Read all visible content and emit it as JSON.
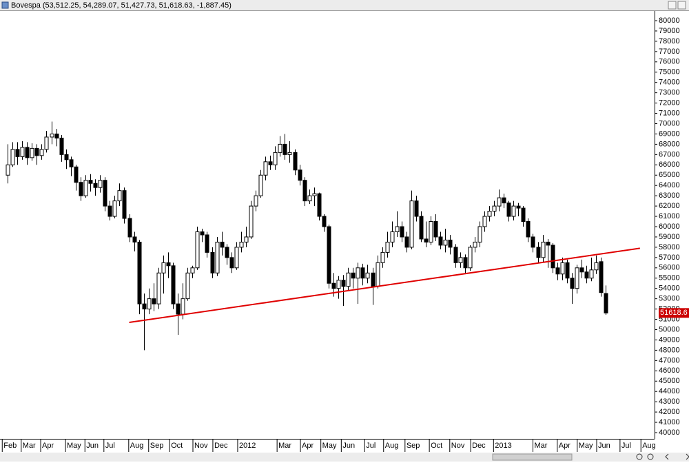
{
  "chart_data": {
    "type": "candlestick",
    "title": "Bovespa (53,512.25, 54,289.07, 51,427.73, 51,618.63, -1,887.45)",
    "last_label": "51618.6",
    "up_color": "#ffffff",
    "down_color": "#000000",
    "wick_color": "#000000",
    "xlim": [
      -1.56,
      133
    ],
    "ylim": [
      40000,
      80000
    ],
    "yticks": [
      40000,
      41000,
      42000,
      43000,
      44000,
      45000,
      46000,
      47000,
      48000,
      49000,
      50000,
      51000,
      52000,
      53000,
      54000,
      55000,
      56000,
      57000,
      58000,
      59000,
      60000,
      61000,
      62000,
      63000,
      64000,
      65000,
      66000,
      67000,
      68000,
      69000,
      70000,
      71000,
      72000,
      73000,
      74000,
      75000,
      76000,
      77000,
      78000,
      79000,
      80000
    ],
    "xticks": [
      {
        "value": -1.1,
        "label": "Feb"
      },
      {
        "value": 2.8,
        "label": "Mar"
      },
      {
        "value": 6.8,
        "label": "Apr"
      },
      {
        "value": 11.9,
        "label": "May"
      },
      {
        "value": 15.9,
        "label": "Jun"
      },
      {
        "value": 19.8,
        "label": "Jul"
      },
      {
        "value": 24.9,
        "label": "Aug"
      },
      {
        "value": 29,
        "label": "Sep"
      },
      {
        "value": 33.3,
        "label": "Oct"
      },
      {
        "value": 38.1,
        "label": "Nov"
      },
      {
        "value": 42.2,
        "label": "Dec"
      },
      {
        "value": 47.3,
        "label": "2012"
      },
      {
        "value": 55.4,
        "label": "Mar"
      },
      {
        "value": 60.2,
        "label": "Apr"
      },
      {
        "value": 64.4,
        "label": "May"
      },
      {
        "value": 68.6,
        "label": "Jun"
      },
      {
        "value": 73.4,
        "label": "Jul"
      },
      {
        "value": 77.3,
        "label": "Aug"
      },
      {
        "value": 81.7,
        "label": "Sep"
      },
      {
        "value": 86.7,
        "label": "Oct"
      },
      {
        "value": 90.9,
        "label": "Nov"
      },
      {
        "value": 95.2,
        "label": "Dec"
      },
      {
        "value": 99.9,
        "label": "2013"
      },
      {
        "value": 108,
        "label": "Mar"
      },
      {
        "value": 113,
        "label": "Apr"
      },
      {
        "value": 117.1,
        "label": "May"
      },
      {
        "value": 121.1,
        "label": "Jun"
      },
      {
        "value": 125.9,
        "label": "Jul"
      },
      {
        "value": 130.2,
        "label": "Aug"
      }
    ],
    "open": [
      65000,
      66000,
      67500,
      66800,
      67700,
      66700,
      67600,
      66900,
      67500,
      68700,
      69000,
      68600,
      67000,
      66500,
      65800,
      64300,
      63000,
      64500,
      64200,
      63800,
      64500,
      62000,
      61000,
      62500,
      63500,
      60800,
      59000,
      58500,
      52500,
      52000,
      53000,
      52500,
      55500,
      56500,
      56200,
      52500,
      51500,
      53000,
      55500,
      56000,
      59500,
      59200,
      57500,
      55500,
      58500,
      58000,
      57000,
      56000,
      58000,
      58500,
      59000,
      62000,
      63000,
      65000,
      66300,
      66000,
      67200,
      68000,
      67000,
      67200,
      65500,
      64500,
      62500,
      63000,
      63200,
      61000,
      60000,
      54500,
      54000,
      54800,
      54200,
      55500,
      55000,
      56000,
      55000,
      55500,
      54200,
      56500,
      57500,
      58500,
      59500,
      60000,
      59000,
      58000,
      62500,
      61000,
      58800,
      58500,
      60500,
      59000,
      58200,
      58700,
      58000,
      56500,
      57000,
      56000,
      58000,
      58500,
      60000,
      61000,
      61500,
      62000,
      62800,
      62300,
      61000,
      62000,
      61800,
      60500,
      59000,
      58000,
      57000,
      58500,
      58200,
      56000,
      55400,
      56500,
      55000,
      54000,
      56000,
      55600,
      55000,
      55800,
      56600,
      53512.25
    ],
    "high": [
      68000,
      68200,
      68200,
      68300,
      68200,
      68100,
      68000,
      68000,
      69300,
      70200,
      69500,
      68900,
      67500,
      66800,
      66000,
      64800,
      65000,
      65100,
      64600,
      65000,
      64800,
      62500,
      63000,
      64200,
      63800,
      61200,
      59500,
      58700,
      53500,
      54000,
      54500,
      56000,
      57200,
      57500,
      56500,
      53500,
      54500,
      56000,
      56200,
      60000,
      59800,
      59500,
      58000,
      59000,
      59500,
      58300,
      57500,
      58500,
      59500,
      60000,
      62500,
      63500,
      65500,
      66800,
      66900,
      67800,
      68800,
      69000,
      68300,
      67500,
      66000,
      64800,
      63600,
      63800,
      63300,
      61200,
      60200,
      55500,
      55200,
      55300,
      56000,
      56000,
      56500,
      56400,
      56300,
      56000,
      57200,
      58000,
      59500,
      60500,
      61500,
      60500,
      59500,
      63500,
      63000,
      61500,
      60500,
      61000,
      61200,
      59500,
      59800,
      59200,
      58300,
      57500,
      57300,
      58200,
      59000,
      60500,
      61500,
      62000,
      62500,
      63600,
      63200,
      62500,
      62500,
      62300,
      62000,
      60800,
      59300,
      58500,
      59200,
      58800,
      58400,
      56500,
      57000,
      56800,
      55500,
      56300,
      56800,
      56200,
      57000,
      57200,
      57000,
      54289.07
    ],
    "low": [
      64200,
      65800,
      66000,
      66500,
      66000,
      66400,
      66000,
      66500,
      67200,
      68000,
      67800,
      66300,
      65600,
      64900,
      63500,
      62500,
      62800,
      63400,
      63000,
      63300,
      61500,
      60600,
      60800,
      62000,
      60300,
      58500,
      57600,
      51500,
      48000,
      51500,
      51800,
      52000,
      53500,
      55000,
      52000,
      49500,
      51000,
      52800,
      55000,
      55800,
      58500,
      57000,
      55000,
      55200,
      57200,
      56300,
      55500,
      55800,
      57500,
      58000,
      58800,
      61500,
      62800,
      64500,
      65500,
      65500,
      66800,
      66500,
      66200,
      65000,
      64000,
      62000,
      62200,
      62000,
      60600,
      59500,
      54000,
      53200,
      53000,
      52300,
      53800,
      54000,
      52500,
      54300,
      54500,
      52400,
      54000,
      56000,
      57000,
      58000,
      59000,
      58500,
      57500,
      57800,
      60500,
      58500,
      58000,
      58200,
      58600,
      57800,
      57500,
      57300,
      56000,
      56000,
      55500,
      55700,
      57500,
      58000,
      59500,
      60500,
      61000,
      61500,
      61800,
      60500,
      60600,
      61000,
      60000,
      58500,
      57500,
      56500,
      56500,
      56000,
      55500,
      54800,
      54800,
      54500,
      52500,
      53500,
      55000,
      54500,
      54700,
      55400,
      53200,
      51427.73
    ],
    "close": [
      66000,
      67500,
      66800,
      67700,
      66700,
      67600,
      66900,
      67500,
      68700,
      69000,
      68600,
      67000,
      66500,
      65800,
      64300,
      63000,
      64500,
      64200,
      63800,
      64500,
      62000,
      61000,
      62500,
      63500,
      60800,
      59000,
      58500,
      52500,
      52000,
      53000,
      52500,
      55500,
      56500,
      56200,
      52500,
      51500,
      53000,
      55500,
      56000,
      59500,
      59200,
      57500,
      55500,
      58500,
      58000,
      57000,
      56000,
      58000,
      58500,
      59000,
      62000,
      63000,
      65000,
      66300,
      66000,
      67200,
      68000,
      67000,
      67200,
      65500,
      64500,
      62500,
      63000,
      63200,
      61000,
      60000,
      54500,
      54000,
      54800,
      54200,
      55500,
      55000,
      56000,
      55000,
      55500,
      54200,
      56500,
      57500,
      58500,
      59500,
      60000,
      59000,
      58000,
      62500,
      61000,
      58800,
      58500,
      60500,
      59000,
      58200,
      58700,
      58000,
      56500,
      57000,
      56000,
      58000,
      58500,
      60000,
      61000,
      61500,
      62000,
      62800,
      62300,
      61000,
      62000,
      61800,
      60500,
      59000,
      58000,
      57000,
      58500,
      58200,
      56000,
      55400,
      56500,
      55000,
      54000,
      56000,
      55600,
      55000,
      55800,
      56500,
      53600,
      51618.63
    ],
    "trendline": {
      "x": [
        25,
        130
      ],
      "y": [
        50700,
        57900
      ],
      "color": "#e00000"
    }
  }
}
